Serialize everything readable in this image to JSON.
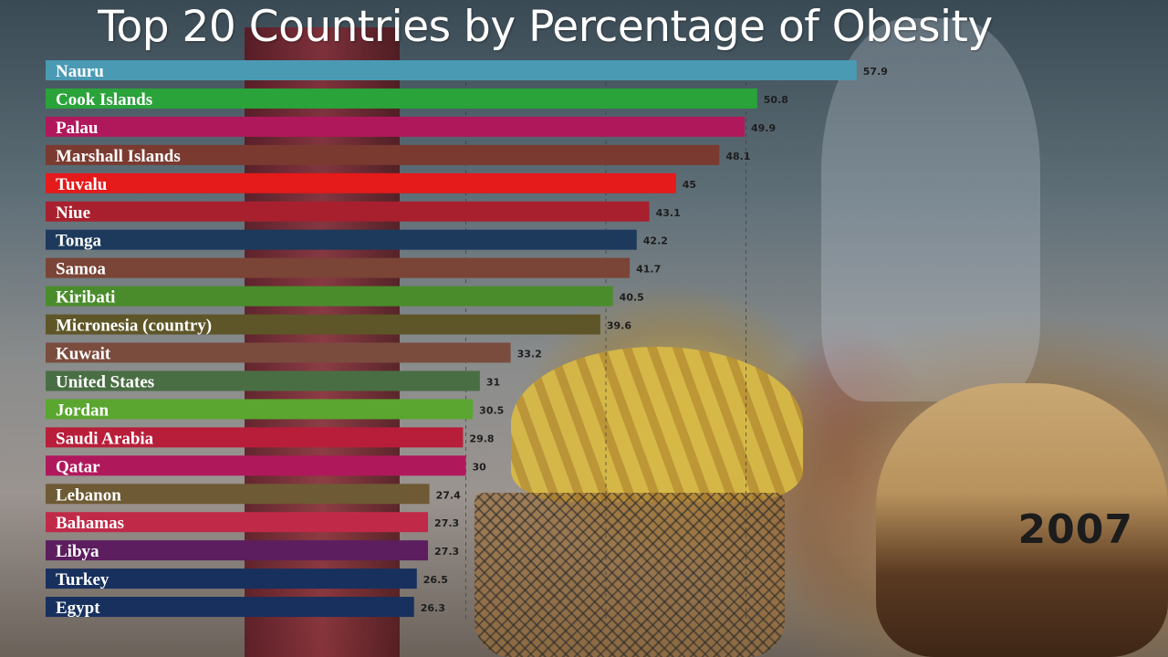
{
  "chart_data": {
    "type": "bar",
    "orientation": "horizontal",
    "title": "Top 20 Countries by Percentage of Obesity",
    "year": "2007",
    "xlim": [
      0,
      60
    ],
    "gridlines": [
      30,
      40,
      50
    ],
    "categories": [
      "Nauru",
      "Cook Islands",
      "Palau",
      "Marshall Islands",
      "Tuvalu",
      "Niue",
      "Tonga",
      "Samoa",
      "Kiribati",
      "Micronesia (country)",
      "Kuwait",
      "United States",
      "Jordan",
      "Saudi Arabia",
      "Qatar",
      "Lebanon",
      "Bahamas",
      "Libya",
      "Turkey",
      "Egypt"
    ],
    "values": [
      57.9,
      50.8,
      49.9,
      48.1,
      45,
      43.1,
      42.2,
      41.7,
      40.5,
      39.6,
      33.2,
      31,
      30.5,
      29.8,
      30,
      27.4,
      27.3,
      27.3,
      26.5,
      26.3
    ],
    "value_labels": [
      "57.9",
      "50.8",
      "49.9",
      "48.1",
      "45",
      "43.1",
      "42.2",
      "41.7",
      "40.5",
      "39.6",
      "33.2",
      "31",
      "30.5",
      "29.8",
      "30",
      "27.4",
      "27.3",
      "27.3",
      "26.5",
      "26.3"
    ],
    "colors": [
      "#4a9ab4",
      "#2aa33a",
      "#b0185c",
      "#7a3a30",
      "#e51a1a",
      "#a8202e",
      "#1d3a5c",
      "#7a4436",
      "#4a8c2c",
      "#5e5628",
      "#7a4c3e",
      "#4a6e44",
      "#5aa630",
      "#b81e3a",
      "#b0185c",
      "#6e5a34",
      "#c02a48",
      "#5c1e5e",
      "#17305e",
      "#17305e"
    ]
  }
}
